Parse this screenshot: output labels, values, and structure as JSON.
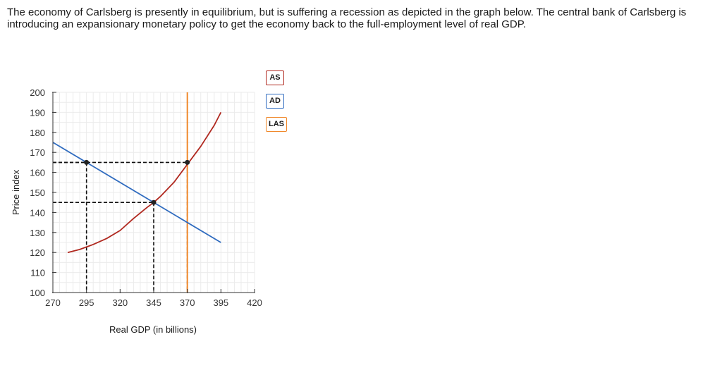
{
  "question": {
    "text": "The economy of Carlsberg is presently in equilibrium, but is suffering a recession as depicted in the graph below. The central bank of Carlsberg is introducing an expansionary monetary policy to get the economy back to the full-employment level of real GDP."
  },
  "legend": [
    {
      "label": "AS",
      "color": "#b0281f"
    },
    {
      "label": "AD",
      "color": "#2f6bbf"
    },
    {
      "label": "LAS",
      "color": "#f0882a"
    }
  ],
  "chart_data": {
    "type": "line",
    "xlabel": "Real GDP (in billions)",
    "ylabel": "Price index",
    "xlim": [
      270,
      420
    ],
    "ylim": [
      100,
      200
    ],
    "x_ticks": [
      270,
      295,
      320,
      345,
      370,
      395,
      420
    ],
    "y_ticks": [
      100,
      110,
      120,
      130,
      140,
      150,
      160,
      170,
      180,
      190,
      200
    ],
    "grid": true,
    "series": [
      {
        "name": "AS",
        "color": "#b0281f",
        "points": [
          [
            281,
            120
          ],
          [
            290,
            121.5
          ],
          [
            300,
            124
          ],
          [
            310,
            127
          ],
          [
            320,
            131
          ],
          [
            330,
            137
          ],
          [
            340,
            142.5
          ],
          [
            345,
            145
          ],
          [
            350,
            148
          ],
          [
            360,
            155
          ],
          [
            370,
            164
          ],
          [
            380,
            173
          ],
          [
            390,
            183.5
          ],
          [
            395,
            190
          ]
        ]
      },
      {
        "name": "AD",
        "color": "#2f6bbf",
        "points": [
          [
            270,
            175
          ],
          [
            395,
            125
          ]
        ]
      },
      {
        "name": "LAS",
        "color": "#f0882a",
        "points": [
          [
            370,
            100
          ],
          [
            370,
            200
          ]
        ]
      }
    ],
    "points": [
      {
        "x": 295,
        "y": 165
      },
      {
        "x": 345,
        "y": 145
      },
      {
        "x": 370,
        "y": 165
      }
    ],
    "dashed_guides": [
      {
        "x": 295,
        "y": 165
      },
      {
        "x": 345,
        "y": 145
      },
      {
        "x": 370,
        "y": 165
      }
    ]
  }
}
